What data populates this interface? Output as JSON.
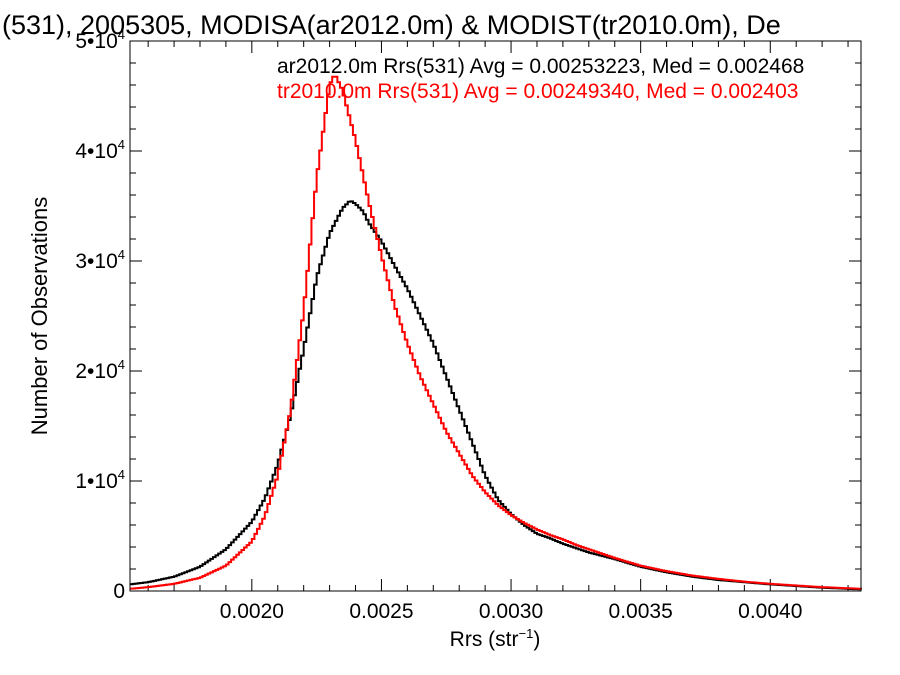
{
  "chart_data": {
    "type": "line",
    "step": true,
    "title": "(531), 2005305, MODISA(ar2012.0m) & MODIST(tr2010.0m), De",
    "xlabel": "Rrs (str",
    "xlabel_sup": "−1",
    "xlabel_end": ")",
    "ylabel": "Number of Observations",
    "xlim": [
      0.00153,
      0.00435
    ],
    "ylim": [
      0,
      50000
    ],
    "x_ticks": [
      {
        "value": 0.002,
        "label": "0.0020"
      },
      {
        "value": 0.0025,
        "label": "0.0025"
      },
      {
        "value": 0.003,
        "label": "0.0030"
      },
      {
        "value": 0.0035,
        "label": "0.0035"
      },
      {
        "value": 0.004,
        "label": "0.0040"
      }
    ],
    "y_ticks": [
      {
        "value": 0,
        "mant": "0",
        "exp": ""
      },
      {
        "value": 10000,
        "mant": "1•10",
        "exp": "4"
      },
      {
        "value": 20000,
        "mant": "2•10",
        "exp": "4"
      },
      {
        "value": 30000,
        "mant": "3•10",
        "exp": "4"
      },
      {
        "value": 40000,
        "mant": "4•10",
        "exp": "4"
      },
      {
        "value": 50000,
        "mant": "5•10",
        "exp": "4"
      }
    ],
    "annotations": [
      {
        "text": "ar2012.0m Rrs(531) Avg = 0.00253223, Med = 0.002468",
        "color": "#000000"
      },
      {
        "text": "tr2010.0m Rrs(531) Avg = 0.00249340, Med = 0.002403",
        "color": "#ff0000"
      }
    ],
    "series": [
      {
        "color": "#000000",
        "points": [
          [
            0.00153,
            600
          ],
          [
            0.0016,
            800
          ],
          [
            0.0017,
            1300
          ],
          [
            0.0018,
            2200
          ],
          [
            0.0019,
            3800
          ],
          [
            0.002,
            6300
          ],
          [
            0.00205,
            8400
          ],
          [
            0.0021,
            11500
          ],
          [
            0.00215,
            16000
          ],
          [
            0.0022,
            22000
          ],
          [
            0.00225,
            28500
          ],
          [
            0.0023,
            32500
          ],
          [
            0.00235,
            34800
          ],
          [
            0.00238,
            35500
          ],
          [
            0.0024,
            35200
          ],
          [
            0.00243,
            34500
          ],
          [
            0.00245,
            33500
          ],
          [
            0.0025,
            31800
          ],
          [
            0.00255,
            29600
          ],
          [
            0.0026,
            27500
          ],
          [
            0.00265,
            25000
          ],
          [
            0.0027,
            22500
          ],
          [
            0.00275,
            19500
          ],
          [
            0.0028,
            16500
          ],
          [
            0.00285,
            13500
          ],
          [
            0.0029,
            10500
          ],
          [
            0.00295,
            8300
          ],
          [
            0.003,
            7000
          ],
          [
            0.00305,
            6000
          ],
          [
            0.0031,
            5200
          ],
          [
            0.00315,
            4800
          ],
          [
            0.0032,
            4300
          ],
          [
            0.00325,
            3900
          ],
          [
            0.0033,
            3500
          ],
          [
            0.0034,
            2900
          ],
          [
            0.0035,
            2200
          ],
          [
            0.0036,
            1700
          ],
          [
            0.0037,
            1300
          ],
          [
            0.0038,
            1000
          ],
          [
            0.0039,
            800
          ],
          [
            0.004,
            600
          ],
          [
            0.0041,
            450
          ],
          [
            0.0042,
            300
          ],
          [
            0.0043,
            200
          ],
          [
            0.00435,
            150
          ]
        ]
      },
      {
        "color": "#ff0000",
        "points": [
          [
            0.00153,
            200
          ],
          [
            0.0016,
            350
          ],
          [
            0.0017,
            650
          ],
          [
            0.0018,
            1200
          ],
          [
            0.0019,
            2300
          ],
          [
            0.002,
            4500
          ],
          [
            0.00205,
            6800
          ],
          [
            0.0021,
            10500
          ],
          [
            0.00215,
            16500
          ],
          [
            0.0022,
            25500
          ],
          [
            0.00225,
            37500
          ],
          [
            0.0023,
            46000
          ],
          [
            0.00232,
            47000
          ],
          [
            0.00235,
            45500
          ],
          [
            0.0024,
            41000
          ],
          [
            0.00245,
            35500
          ],
          [
            0.0025,
            30500
          ],
          [
            0.00255,
            26000
          ],
          [
            0.0026,
            22500
          ],
          [
            0.00265,
            19500
          ],
          [
            0.0027,
            17000
          ],
          [
            0.00275,
            14500
          ],
          [
            0.0028,
            12500
          ],
          [
            0.00285,
            10500
          ],
          [
            0.0029,
            9000
          ],
          [
            0.00295,
            7800
          ],
          [
            0.003,
            6900
          ],
          [
            0.00305,
            6200
          ],
          [
            0.0031,
            5600
          ],
          [
            0.00315,
            5100
          ],
          [
            0.0032,
            4700
          ],
          [
            0.00325,
            4200
          ],
          [
            0.0033,
            3800
          ],
          [
            0.0034,
            3000
          ],
          [
            0.0035,
            2300
          ],
          [
            0.0036,
            1800
          ],
          [
            0.0037,
            1400
          ],
          [
            0.0038,
            1100
          ],
          [
            0.0039,
            850
          ],
          [
            0.004,
            650
          ],
          [
            0.0041,
            500
          ],
          [
            0.0042,
            350
          ],
          [
            0.0043,
            250
          ],
          [
            0.00435,
            200
          ]
        ]
      }
    ]
  }
}
